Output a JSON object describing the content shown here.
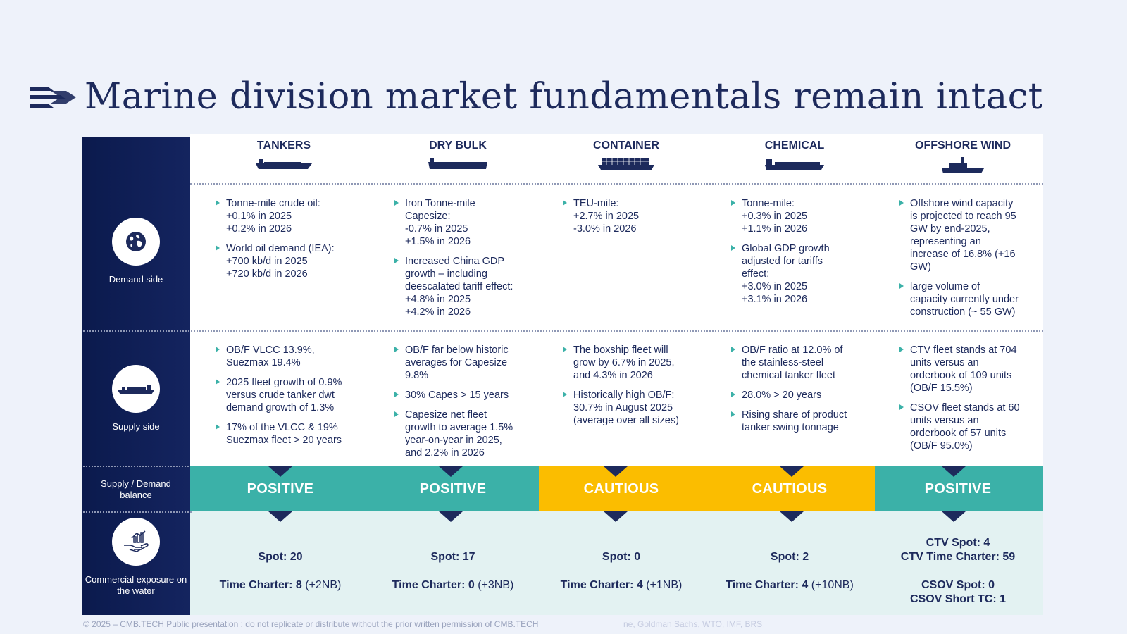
{
  "title": "Marine division market fundamentals remain intact",
  "colors": {
    "positive": "#3bb1a8",
    "cautious": "#fbbd00",
    "navy": "#1d2a5c"
  },
  "rows": {
    "demand": "Demand side",
    "supply": "Supply side",
    "balance": "Supply / Demand balance",
    "exposure": "Commercial exposure on the water"
  },
  "columns": [
    {
      "title": "TANKERS",
      "demand": [
        "Tonne-mile crude oil:\n+0.1% in 2025\n+0.2% in 2026",
        "World oil demand (IEA):\n+700 kb/d in 2025\n+720 kb/d in 2026"
      ],
      "supply": [
        "OB/F VLCC 13.9%,\nSuezmax 19.4%",
        "2025 fleet growth of 0.9%\nversus crude tanker dwt\ndemand growth of 1.3%",
        "17% of the VLCC & 19%\nSuezmax fleet > 20 years"
      ],
      "balance": "POSITIVE",
      "exposure": {
        "spot_label": "Spot: 20",
        "tc_label": "Time Charter: 8",
        "tc_extra": " (+2NB)"
      }
    },
    {
      "title": "DRY BULK",
      "demand": [
        "Iron Tonne-mile\nCapesize:\n-0.7% in 2025\n+1.5% in 2026",
        "Increased China GDP\ngrowth – including\ndeescalated tariff effect:\n+4.8% in 2025\n+4.2% in 2026"
      ],
      "supply": [
        "OB/F far below historic\naverages for Capesize\n9.8%",
        "30% Capes > 15 years",
        "Capesize net fleet\ngrowth to average 1.5%\nyear-on-year in 2025,\nand 2.2% in 2026"
      ],
      "balance": "POSITIVE",
      "exposure": {
        "spot_label": "Spot: 17",
        "tc_label": "Time Charter: 0",
        "tc_extra": " (+3NB)"
      }
    },
    {
      "title": "CONTAINER",
      "demand": [
        "TEU-mile:\n+2.7% in 2025\n-3.0% in 2026"
      ],
      "supply": [
        "The boxship fleet will\ngrow by 6.7% in 2025,\nand 4.3% in 2026",
        "Historically high OB/F:\n30.7% in August 2025\n(average over all sizes)"
      ],
      "balance": "CAUTIOUS",
      "exposure": {
        "spot_label": "Spot: 0",
        "tc_label": "Time Charter: 4",
        "tc_extra": " (+1NB)"
      }
    },
    {
      "title": "CHEMICAL",
      "demand": [
        "Tonne-mile:\n+0.3% in 2025\n+1.1% in 2026",
        "Global GDP growth\nadjusted for tariffs\neffect:\n+3.0% in 2025\n+3.1% in 2026"
      ],
      "supply": [
        "OB/F ratio at 12.0% of\nthe stainless-steel\nchemical tanker fleet",
        "28.0% > 20 years",
        "Rising share of product\ntanker swing tonnage"
      ],
      "balance": "CAUTIOUS",
      "exposure": {
        "spot_label": "Spot: 2",
        "tc_label": "Time Charter: 4",
        "tc_extra": " (+10NB)"
      }
    },
    {
      "title": "OFFSHORE WIND",
      "demand": [
        "Offshore wind capacity\nis projected to reach 95\nGW by end-2025,\nrepresenting an\nincrease of 16.8% (+16\nGW)",
        "large volume of\ncapacity currently under\nconstruction (~ 55 GW)"
      ],
      "supply": [
        "CTV fleet stands at 704\nunits versus an\norderbook of 109 units\n(OB/F 15.5%)",
        "CSOV fleet stands at 60\nunits versus an\norderbook of 57 units\n(OB/F 95.0%)"
      ],
      "balance": "POSITIVE",
      "exposure": {
        "ctv_spot": "CTV Spot: 4",
        "ctv_tc": "CTV Time Charter: 59",
        "csov_spot": "CSOV Spot: 0",
        "csov_tc": "CSOV Short TC: 1"
      }
    }
  ],
  "footer": "© 2025 – CMB.TECH Public presentation : do not replicate or distribute without the prior written permission of CMB.TECH",
  "footer_sources": "ne, Goldman Sachs, WTO, IMF, BRS"
}
